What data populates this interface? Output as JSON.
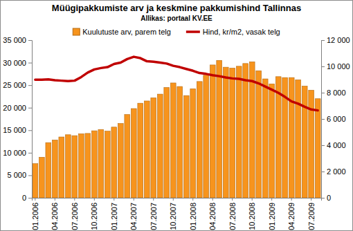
{
  "chart_data": {
    "type": "bar",
    "title": "Müügipakkumiste arv ja keskmine pakkumishind Tallinnas",
    "subtitle": "Allikas: portaal KV.EE",
    "categories": [
      "01.2006",
      null,
      null,
      "04.2006",
      null,
      null,
      "07.2006",
      null,
      null,
      "10.2006",
      null,
      null,
      "01.2007",
      null,
      null,
      "04.2007",
      null,
      null,
      "07.2007",
      null,
      null,
      "10.2007",
      null,
      null,
      "01.2008",
      null,
      null,
      "04.2008",
      null,
      null,
      "07.2008",
      null,
      null,
      "10.2008",
      null,
      null,
      "01.2009",
      null,
      null,
      "04.2009",
      null,
      null,
      "07.2009",
      null
    ],
    "series": [
      {
        "name": "Kuulutuste arv, parem telg",
        "type": "bar",
        "color": "#f7941d",
        "axis": "y2",
        "values": [
          2600,
          3090,
          4200,
          4400,
          4630,
          4800,
          4730,
          4870,
          4900,
          5100,
          5200,
          5070,
          5380,
          5660,
          6340,
          6790,
          7200,
          7370,
          7610,
          7890,
          8400,
          8740,
          8470,
          7780,
          8300,
          8850,
          9330,
          10110,
          10460,
          9940,
          9870,
          10010,
          10220,
          10350,
          9670,
          9050,
          8670,
          9220,
          9150,
          9150,
          8980,
          8500,
          8190,
          7540
        ]
      },
      {
        "name": "Hind, kr/m2, vasak telg",
        "type": "line",
        "color": "#c00000",
        "values": [
          26200,
          26200,
          26300,
          26100,
          26000,
          25900,
          26000,
          26800,
          27800,
          28500,
          28800,
          29000,
          29700,
          30000,
          30800,
          31300,
          31000,
          30300,
          30200,
          30000,
          29800,
          29300,
          29000,
          28600,
          28200,
          27700,
          27500,
          27200,
          27000,
          26700,
          26500,
          26400,
          26100,
          25900,
          25400,
          24700,
          24000,
          23300,
          22400,
          21400,
          20900,
          20200,
          19600,
          19400
        ]
      }
    ],
    "ylim": [
      0,
      35000
    ],
    "yticks": [
      0,
      {
        "value": 5000,
        "label": "5 000"
      },
      {
        "value": 10000,
        "label": "10 000"
      },
      {
        "value": 15000,
        "label": "15 000"
      },
      {
        "value": 20000,
        "label": "20 000"
      },
      {
        "value": 25000,
        "label": "25 000"
      },
      {
        "value": 30000,
        "label": "30 000"
      },
      {
        "value": 35000,
        "label": "35 000"
      }
    ],
    "y2lim": [
      0,
      12000
    ],
    "y2ticks": [
      0,
      {
        "value": 2000,
        "label": "2 000"
      },
      {
        "value": 4000,
        "label": "4 000"
      },
      {
        "value": 6000,
        "label": "6 000"
      },
      {
        "value": 8000,
        "label": "8 000"
      },
      {
        "value": 10000,
        "label": "10 000"
      },
      {
        "value": 12000,
        "label": "12 000"
      }
    ],
    "grid": false,
    "legend": "top"
  }
}
